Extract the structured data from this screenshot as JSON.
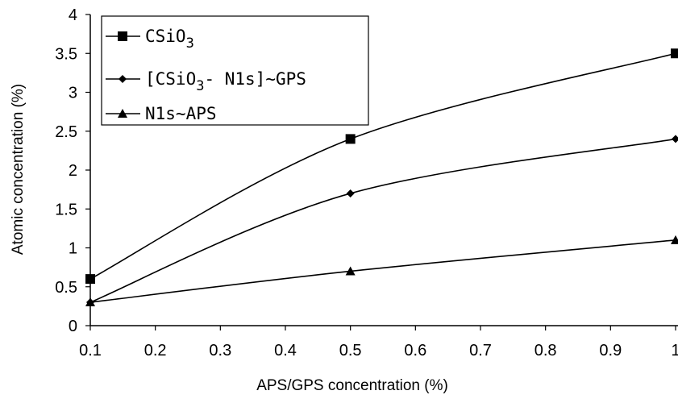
{
  "chart_data": {
    "type": "line",
    "xlabel": "APS/GPS concentration (%)",
    "ylabel": "Atomic concentration (%)",
    "xlim": [
      0.1,
      1.0
    ],
    "ylim": [
      0,
      4
    ],
    "xticks": [
      "0.1",
      "0.2",
      "0.3",
      "0.4",
      "0.5",
      "0.6",
      "0.7",
      "0.8",
      "0.9",
      "1"
    ],
    "yticks": [
      "0",
      "0.5",
      "1",
      "1.5",
      "2",
      "2.5",
      "3",
      "3.5",
      "4"
    ],
    "x": [
      0.1,
      0.5,
      1.0
    ],
    "grid": false,
    "legend_position": "top-left",
    "series": [
      {
        "name": "CSiO3",
        "name_main": "CSiO",
        "name_sub": "3",
        "name_tail": "",
        "marker": "square",
        "values": [
          0.6,
          2.4,
          3.5
        ]
      },
      {
        "name": "[CSiO3-N1s]~GPS",
        "name_main": "[CSiO",
        "name_sub": "3",
        "name_tail": "- N1s]~GPS",
        "marker": "diamond",
        "values": [
          0.3,
          1.7,
          2.4
        ]
      },
      {
        "name": "N1s~APS",
        "name_main": "N1s~APS",
        "name_sub": "",
        "name_tail": "",
        "marker": "triangle",
        "values": [
          0.3,
          0.7,
          1.1
        ]
      }
    ]
  }
}
